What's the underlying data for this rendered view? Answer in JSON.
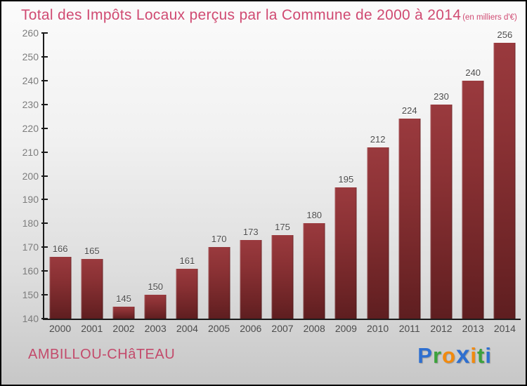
{
  "chart_data": {
    "type": "bar",
    "title": "Total des Impôts Locaux perçus par la Commune de 2000 à 2014",
    "subtitle": "(en milliers d'€)",
    "categories": [
      "2000",
      "2001",
      "2002",
      "2003",
      "2004",
      "2005",
      "2006",
      "2007",
      "2008",
      "2009",
      "2010",
      "2011",
      "2012",
      "2013",
      "2014"
    ],
    "values": [
      166,
      165,
      145,
      150,
      161,
      170,
      173,
      175,
      180,
      195,
      212,
      224,
      230,
      240,
      256
    ],
    "xlabel": "",
    "ylabel": "",
    "ylim": [
      140,
      260
    ],
    "ytick_step": 10,
    "grid": false,
    "legend": false,
    "bar_color_top": "#9a3a3e",
    "bar_color_bottom": "#5e1e20",
    "value_labels_shown": true
  },
  "footer": {
    "commune": "AMBILLOU-CHâTEAU"
  },
  "logo": {
    "name": "Proxiti",
    "letters": [
      {
        "char": "P",
        "color": "#2e6fd0"
      },
      {
        "char": "r",
        "color": "#3ca23c"
      },
      {
        "char": "o",
        "color": "#f28a0e"
      },
      {
        "char": "x",
        "color": "#2e6fd0",
        "big": true
      },
      {
        "char": "i",
        "color": "#f28a0e"
      },
      {
        "char": "t",
        "color": "#3ca23c"
      },
      {
        "char": "i",
        "color": "#2e6fd0"
      }
    ]
  },
  "colors": {
    "title": "#d04a72",
    "axis": "#1b1b1b",
    "tick_label": "#7d7d7d",
    "value_label": "#4c4c4c"
  }
}
